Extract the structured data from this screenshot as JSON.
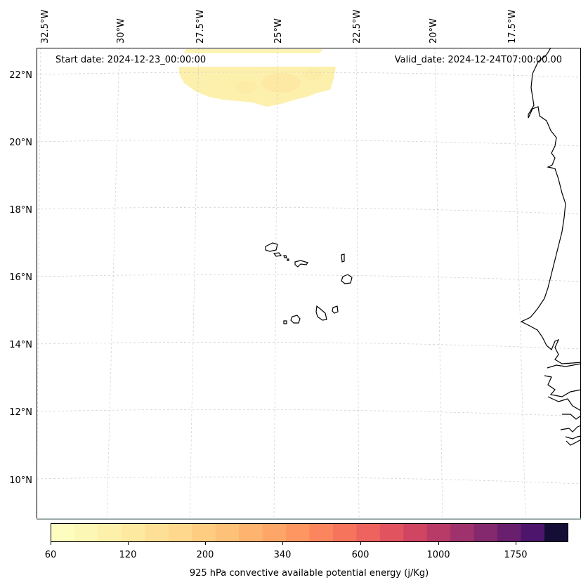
{
  "map": {
    "start_date_label": "Start date: 2024-12-23_00:00:00",
    "valid_date_label": "Valid_date: 2024-12-24T07:00:00.00",
    "lon_ticks": [
      "32.5°W",
      "30°W",
      "27.5°W",
      "25°W",
      "22.5°W",
      "20°W",
      "17.5°W"
    ],
    "lat_ticks": [
      "22°N",
      "20°N",
      "18°N",
      "16°N",
      "14°N",
      "12°N",
      "10°N"
    ]
  },
  "colorbar": {
    "title": "925 hPa convective available potential energy (j/Kg)",
    "tick_labels": [
      "60",
      "120",
      "200",
      "340",
      "600",
      "1000",
      "1750"
    ],
    "colors": [
      "#fcfdbf",
      "#fcf7b5",
      "#fcf0ab",
      "#fde9a0",
      "#fde096",
      "#fed88c",
      "#fecd82",
      "#fec178",
      "#feb46f",
      "#fea667",
      "#fd9660",
      "#fb855c",
      "#f6745c",
      "#ee635d",
      "#e1535f",
      "#cf4562",
      "#b73a67",
      "#9f326c",
      "#84296d",
      "#691f6e",
      "#4d156b",
      "#140e36"
    ]
  }
}
